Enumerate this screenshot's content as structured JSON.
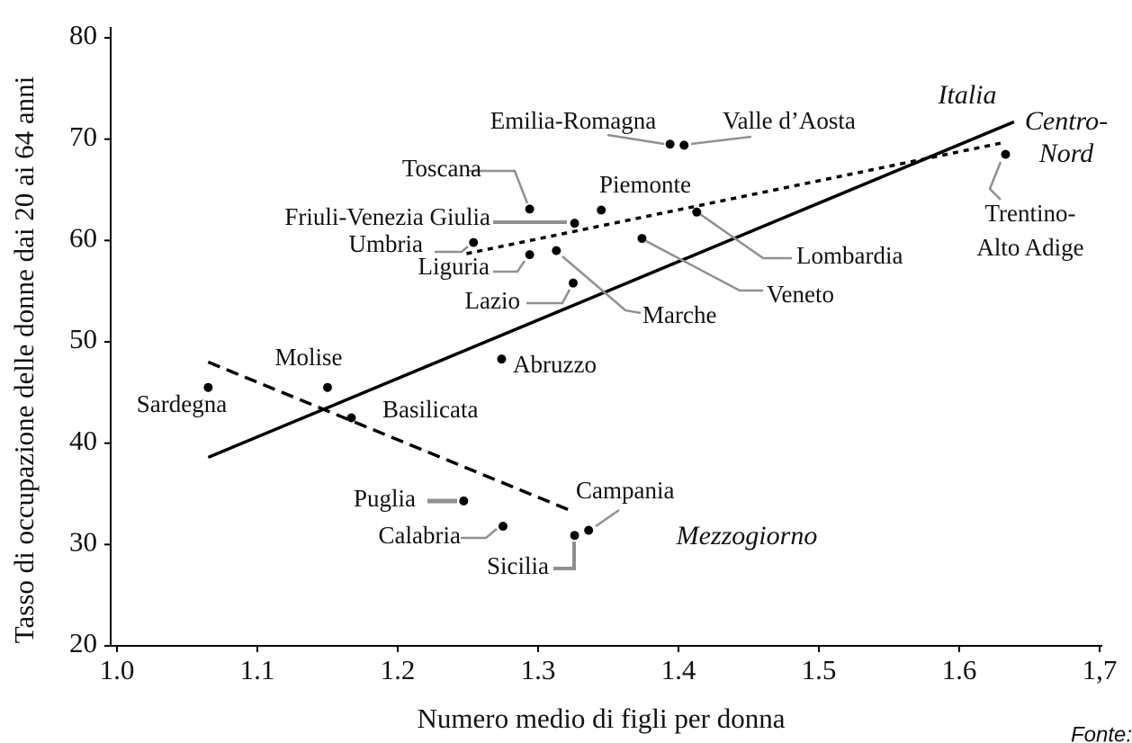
{
  "chart_data": {
    "type": "scatter",
    "xlabel": "Numero medio di figli per donna",
    "ylabel": "Tasso di occupazione delle donne dai 20 ai 64 anni",
    "source": "Fonte:",
    "xlim": [
      1.0,
      1.7
    ],
    "ylim": [
      20,
      80
    ],
    "xticks": [
      {
        "value": 1.0,
        "label": "1.0"
      },
      {
        "value": 1.1,
        "label": "1.1"
      },
      {
        "value": 1.2,
        "label": "1.2"
      },
      {
        "value": 1.3,
        "label": "1.3"
      },
      {
        "value": 1.4,
        "label": "1.4"
      },
      {
        "value": 1.5,
        "label": "1.5"
      },
      {
        "value": 1.6,
        "label": "1.6"
      },
      {
        "value": 1.7,
        "label": "1,7"
      }
    ],
    "yticks": [
      20,
      30,
      40,
      50,
      60,
      70,
      80
    ],
    "color": "#000000",
    "leader_color": "#909090",
    "points": {
      "labels": [
        [
          "Sardegna"
        ],
        [
          "Molise"
        ],
        [
          "Basilicata"
        ],
        [
          "Abruzzo"
        ],
        [
          "Puglia"
        ],
        [
          "Calabria"
        ],
        [
          "Sicilia"
        ],
        [
          "Campania"
        ],
        [
          "Lazio"
        ],
        [
          "Liguria"
        ],
        [
          "Marche"
        ],
        [
          "Umbria"
        ],
        [
          "Toscana"
        ],
        [
          "Friuli-Venezia Giulia"
        ],
        [
          "Piemonte"
        ],
        [
          "Emilia-Romagna"
        ],
        [
          "Valle d’Aosta"
        ],
        [
          "Lombardia"
        ],
        [
          "Veneto"
        ],
        [
          "Trentino-",
          "Alto Adige"
        ]
      ],
      "x": [
        1.065,
        1.15,
        1.167,
        1.274,
        1.247,
        1.275,
        1.326,
        1.336,
        1.325,
        1.294,
        1.313,
        1.254,
        1.294,
        1.326,
        1.345,
        1.394,
        1.404,
        1.413,
        1.374,
        1.633
      ],
      "y": [
        45.5,
        45.5,
        42.5,
        48.3,
        34.3,
        31.8,
        30.9,
        31.4,
        55.8,
        58.6,
        59.0,
        59.8,
        63.1,
        61.7,
        63.0,
        69.5,
        69.4,
        62.8,
        60.2,
        68.5
      ]
    },
    "lines": [
      {
        "label": [
          "Italia"
        ],
        "style": "solid",
        "x": [
          1.065,
          1.639
        ],
        "y": [
          38.6,
          71.7
        ]
      },
      {
        "label": [
          "Centro-",
          "Nord"
        ],
        "style": "dotted",
        "x": [
          1.249,
          1.633
        ],
        "y": [
          58.7,
          69.7
        ]
      },
      {
        "label": [
          "Mezzogiorno"
        ],
        "style": "dashed",
        "x": [
          1.065,
          1.324
        ],
        "y": [
          48.0,
          33.3
        ]
      }
    ]
  }
}
